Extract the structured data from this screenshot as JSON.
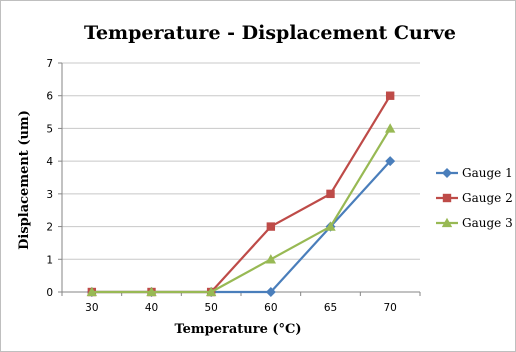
{
  "chart_data": {
    "type": "line",
    "title": "Temperature - Displacement Curve",
    "xlabel": "Temperature (°C)",
    "ylabel": "Displacement (um)",
    "categories": [
      "30",
      "40",
      "50",
      "60",
      "65",
      "70"
    ],
    "ylim": [
      0,
      7
    ],
    "yticks": [
      "0",
      "1",
      "2",
      "3",
      "4",
      "5",
      "6",
      "7"
    ],
    "grid": true,
    "legend_position": "right",
    "series": [
      {
        "name": "Gauge 1",
        "values": [
          0,
          0,
          0,
          0,
          2,
          4
        ],
        "color": "#4a7ebb",
        "marker": "diamond"
      },
      {
        "name": "Gauge 2",
        "values": [
          0,
          0,
          0,
          2,
          3,
          6
        ],
        "color": "#be4b48",
        "marker": "square"
      },
      {
        "name": "Gauge 3",
        "values": [
          0,
          0,
          0,
          1,
          2,
          5
        ],
        "color": "#98b954",
        "marker": "triangle"
      }
    ]
  }
}
